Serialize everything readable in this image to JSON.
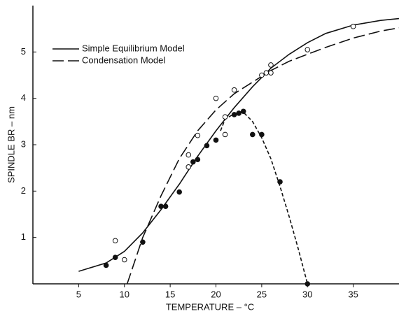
{
  "chart_data": {
    "type": "line",
    "x_label": "TEMPERATURE – °C",
    "y_label": "SPINDLE BR – nm",
    "xlim": [
      0,
      40
    ],
    "ylim": [
      0,
      6
    ],
    "xticks": [
      5,
      10,
      15,
      20,
      25,
      30,
      35
    ],
    "yticks": [
      1,
      2,
      3,
      4,
      5
    ],
    "legend": "upper left",
    "series": [
      {
        "name": "Simple Equilibrium Model",
        "color": "#111111",
        "style": "solid",
        "x": [
          5,
          8,
          10,
          12,
          14,
          16,
          18,
          20,
          22,
          24,
          26,
          28,
          30,
          32,
          35,
          38,
          40
        ],
        "values": [
          0.27,
          0.45,
          0.7,
          1.1,
          1.6,
          2.15,
          2.75,
          3.3,
          3.8,
          4.25,
          4.65,
          4.95,
          5.2,
          5.4,
          5.58,
          5.68,
          5.72
        ]
      },
      {
        "name": "Condensation Model",
        "color": "#111111",
        "style": "dashed",
        "x": [
          10.3,
          12,
          14,
          16,
          18,
          20,
          22,
          24,
          26,
          28,
          30,
          32,
          35,
          38,
          40
        ],
        "values": [
          0,
          1.0,
          1.9,
          2.7,
          3.3,
          3.75,
          4.1,
          4.35,
          4.6,
          4.8,
          4.95,
          5.1,
          5.3,
          5.45,
          5.52
        ]
      },
      {
        "color": "#111111",
        "style": "dotted",
        "x": [
          20.5,
          21,
          22,
          23,
          24,
          25,
          26,
          27,
          28,
          29,
          30
        ],
        "values": [
          3.3,
          3.55,
          3.67,
          3.7,
          3.5,
          3.15,
          2.7,
          2.1,
          1.45,
          0.75,
          0
        ]
      },
      {
        "color": "#111111",
        "style": "open",
        "x": [
          9,
          10,
          17,
          17,
          18,
          20,
          21,
          21,
          22,
          25,
          25.5,
          26,
          26,
          30,
          35
        ],
        "values": [
          0.93,
          0.52,
          2.78,
          2.52,
          3.2,
          4.0,
          3.6,
          3.22,
          4.18,
          4.5,
          4.55,
          4.72,
          4.55,
          5.05,
          5.55
        ]
      },
      {
        "color": "#111111",
        "style": "filled",
        "x": [
          8,
          9,
          12,
          14,
          14.5,
          16,
          17.5,
          18,
          19,
          20,
          22,
          22.5,
          23,
          24,
          25,
          27,
          30
        ],
        "values": [
          0.4,
          0.57,
          0.9,
          1.67,
          1.67,
          1.98,
          2.63,
          2.68,
          2.98,
          3.1,
          3.65,
          3.68,
          3.72,
          3.22,
          3.22,
          2.2,
          0
        ]
      }
    ]
  }
}
